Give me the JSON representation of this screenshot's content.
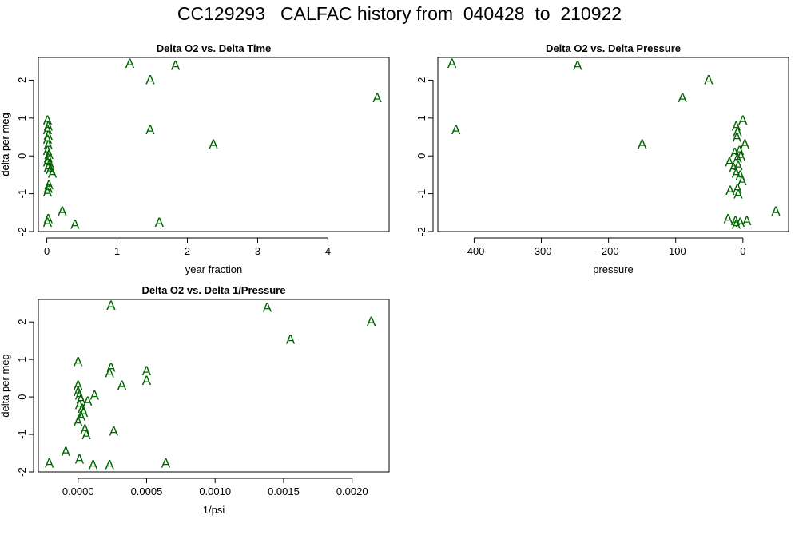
{
  "title": "CC129293   CALFAC history from  040428  to  210922",
  "marker": "A",
  "marker_color": "#006400",
  "chart_data": [
    {
      "type": "scatter",
      "title": "Delta O2 vs. Delta Time",
      "xlabel": "year fraction",
      "ylabel": "delta per meg",
      "xlim": [
        -0.12,
        4.87
      ],
      "ylim": [
        -2.0,
        2.6
      ],
      "xticks": [
        0,
        1,
        2,
        3,
        4
      ],
      "xtick_labels": [
        "0",
        "1",
        "2",
        "3",
        "4"
      ],
      "yticks": [
        -2,
        -1,
        0,
        1,
        2
      ],
      "ytick_labels": [
        "-2",
        "-1",
        "0",
        "1",
        "2"
      ],
      "points": [
        [
          0.01,
          0.95
        ],
        [
          0.02,
          0.8
        ],
        [
          0.01,
          0.7
        ],
        [
          0.02,
          0.55
        ],
        [
          0.01,
          0.45
        ],
        [
          0.02,
          0.3
        ],
        [
          0.01,
          0.15
        ],
        [
          0.03,
          0.05
        ],
        [
          0.02,
          -0.05
        ],
        [
          0.01,
          -0.15
        ],
        [
          0.04,
          -0.2
        ],
        [
          0.02,
          -0.3
        ],
        [
          0.05,
          -0.35
        ],
        [
          0.08,
          -0.45
        ],
        [
          0.03,
          -0.75
        ],
        [
          0.02,
          -0.85
        ],
        [
          0.01,
          -0.95
        ],
        [
          0.02,
          -1.65
        ],
        [
          0.01,
          -1.75
        ],
        [
          0.22,
          -1.45
        ],
        [
          0.4,
          -1.8
        ],
        [
          1.18,
          2.45
        ],
        [
          1.47,
          2.02
        ],
        [
          1.47,
          0.7
        ],
        [
          1.83,
          2.4
        ],
        [
          1.6,
          -1.75
        ],
        [
          2.37,
          0.32
        ],
        [
          4.7,
          1.55
        ]
      ]
    },
    {
      "type": "scatter",
      "title": "Delta O2 vs. Delta Pressure",
      "xlabel": "pressure",
      "ylabel": "delta per meg",
      "xlim": [
        -454,
        68
      ],
      "ylim": [
        -2.0,
        2.6
      ],
      "xticks": [
        -400,
        -300,
        -200,
        -100,
        0
      ],
      "xtick_labels": [
        "-400",
        "-300",
        "-200",
        "-100",
        "0"
      ],
      "yticks": [
        -2,
        -1,
        0,
        1,
        2
      ],
      "ytick_labels": [
        "-2",
        "-1",
        "0",
        "1",
        "2"
      ],
      "points": [
        [
          -433,
          2.45
        ],
        [
          -427,
          0.7
        ],
        [
          -246,
          2.4
        ],
        [
          -150,
          0.32
        ],
        [
          -90,
          1.55
        ],
        [
          -51,
          2.02
        ],
        [
          0,
          0.95
        ],
        [
          -10,
          0.8
        ],
        [
          -8,
          0.65
        ],
        [
          -9,
          0.5
        ],
        [
          3,
          0.32
        ],
        [
          -5,
          0.15
        ],
        [
          -12,
          0.1
        ],
        [
          -3,
          0.0
        ],
        [
          -20,
          -0.15
        ],
        [
          -8,
          -0.05
        ],
        [
          -14,
          -0.3
        ],
        [
          -7,
          -0.25
        ],
        [
          -10,
          -0.45
        ],
        [
          -4,
          -0.5
        ],
        [
          -1,
          -0.65
        ],
        [
          -19,
          -0.9
        ],
        [
          -8,
          -0.85
        ],
        [
          -7,
          -1.0
        ],
        [
          -22,
          -1.65
        ],
        [
          -11,
          -1.7
        ],
        [
          -10,
          -1.8
        ],
        [
          -4,
          -1.75
        ],
        [
          6,
          -1.7
        ],
        [
          49,
          -1.45
        ]
      ]
    },
    {
      "type": "scatter",
      "title": "Delta O2 vs. Delta 1/Pressure",
      "xlabel": "1/psi",
      "ylabel": "delta per meg",
      "xlim": [
        -0.00029,
        0.00227
      ],
      "ylim": [
        -2.0,
        2.6
      ],
      "xticks": [
        0.0,
        0.0005,
        0.001,
        0.0015,
        0.002
      ],
      "xtick_labels": [
        "0.0000",
        "0.0005",
        "0.0010",
        "0.0015",
        "0.0020"
      ],
      "yticks": [
        -2,
        -1,
        0,
        1,
        2
      ],
      "ytick_labels": [
        "-2",
        "-1",
        "0",
        "1",
        "2"
      ],
      "points": [
        [
          0.00024,
          2.45
        ],
        [
          0.00138,
          2.4
        ],
        [
          0.00214,
          2.02
        ],
        [
          0.00155,
          1.55
        ],
        [
          0.0,
          0.95
        ],
        [
          0.00024,
          0.8
        ],
        [
          0.00023,
          0.65
        ],
        [
          0.0005,
          0.7
        ],
        [
          0.0005,
          0.45
        ],
        [
          0.0,
          0.32
        ],
        [
          0.00032,
          0.32
        ],
        [
          0.0,
          0.15
        ],
        [
          1e-05,
          0.05
        ],
        [
          0.00012,
          0.05
        ],
        [
          2e-05,
          -0.05
        ],
        [
          7e-05,
          -0.1
        ],
        [
          1e-05,
          -0.2
        ],
        [
          3e-05,
          -0.3
        ],
        [
          4e-05,
          -0.4
        ],
        [
          2e-05,
          -0.5
        ],
        [
          0.0,
          -0.65
        ],
        [
          5e-05,
          -0.85
        ],
        [
          6e-05,
          -1.0
        ],
        [
          0.00026,
          -0.9
        ],
        [
          -0.00021,
          -1.75
        ],
        [
          -9e-05,
          -1.45
        ],
        [
          1e-05,
          -1.65
        ],
        [
          0.00011,
          -1.8
        ],
        [
          0.00023,
          -1.8
        ],
        [
          0.00064,
          -1.75
        ]
      ]
    }
  ]
}
